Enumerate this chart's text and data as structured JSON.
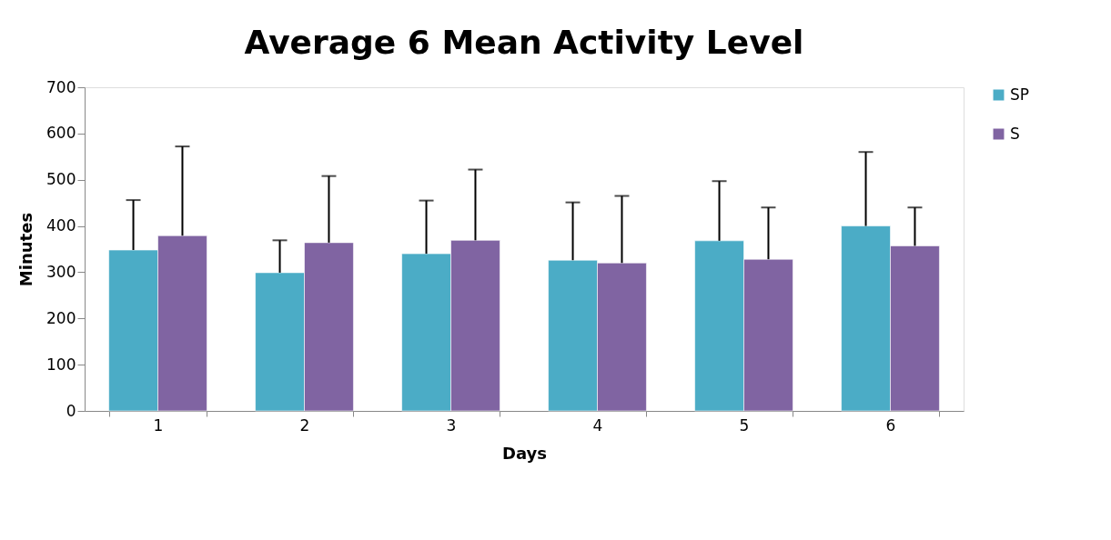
{
  "chart_data": {
    "type": "bar",
    "title": "Average 6 Mean Activity Level",
    "xlabel": "Days",
    "ylabel": "Minutes",
    "categories": [
      "1",
      "2",
      "3",
      "4",
      "5",
      "6"
    ],
    "series": [
      {
        "name": "SP",
        "color": "#4bacc6",
        "values": [
          348,
          299,
          340,
          326,
          368,
          400
        ],
        "errors": [
          [
            348,
            456
          ],
          [
            299,
            369
          ],
          [
            340,
            455
          ],
          [
            326,
            451
          ],
          [
            368,
            497
          ],
          [
            400,
            560
          ]
        ]
      },
      {
        "name": "S",
        "color": "#8064a2",
        "values": [
          379,
          364,
          369,
          320,
          328,
          357
        ],
        "errors": [
          [
            379,
            572
          ],
          [
            364,
            508
          ],
          [
            369,
            522
          ],
          [
            320,
            465
          ],
          [
            328,
            440
          ],
          [
            357,
            440
          ]
        ]
      }
    ],
    "ylim": [
      0,
      700
    ],
    "yticks": [
      0,
      100,
      200,
      300,
      400,
      500,
      600,
      700
    ],
    "grid": false,
    "legend": "right"
  }
}
